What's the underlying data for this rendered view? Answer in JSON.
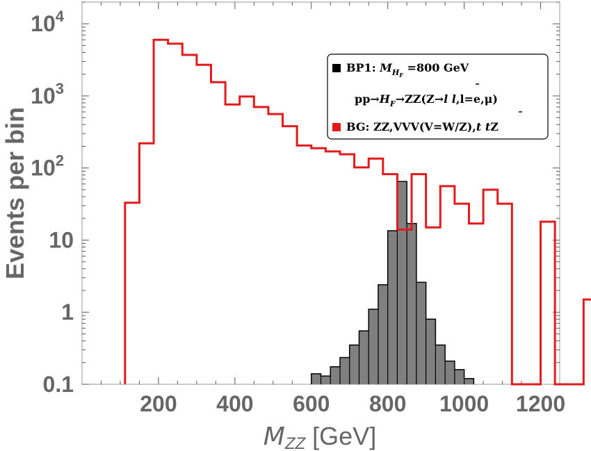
{
  "chart_data": {
    "type": "histogram",
    "scale": "log",
    "xlabel_main": "M",
    "xlabel_sub": "ZZ",
    "xlabel_unit": "[GeV]",
    "ylabel": "Events per bin",
    "xlim": [
      0,
      1250
    ],
    "ylim": [
      0.1,
      20000
    ],
    "x_ticks": [
      {
        "value": 200,
        "label": "200"
      },
      {
        "value": 400,
        "label": "400"
      },
      {
        "value": 600,
        "label": "600"
      },
      {
        "value": 800,
        "label": "800"
      },
      {
        "value": 1000,
        "label": "1000"
      },
      {
        "value": 1200,
        "label": "1200"
      }
    ],
    "y_ticks": [
      {
        "value": 0.1,
        "label": "0.1"
      },
      {
        "value": 1,
        "label": "1"
      },
      {
        "value": 10,
        "label": "10"
      },
      {
        "value": 100,
        "label": "10",
        "exp": "2"
      },
      {
        "value": 1000,
        "label": "10",
        "exp": "3"
      },
      {
        "value": 10000,
        "label": "10",
        "exp": "4"
      }
    ],
    "series": [
      {
        "name": "BG",
        "style": "step",
        "color": "#e31a1c",
        "x_start": 112.5,
        "bin_width": 37.5,
        "values": [
          33,
          220,
          6000,
          5300,
          3700,
          2700,
          1550,
          760,
          980,
          700,
          560,
          380,
          205,
          188,
          170,
          155,
          102,
          135,
          82,
          14,
          82,
          15,
          56,
          32,
          17,
          50,
          32,
          0.1,
          0.1,
          18,
          0.1,
          0.1,
          1.5,
          18
        ]
      },
      {
        "name": "BP1",
        "style": "filled-step",
        "color": "#000000",
        "fill": "#808080",
        "x_start": 600,
        "bin_width": 25,
        "values": [
          0.14,
          0.13,
          0.175,
          0.235,
          0.35,
          0.55,
          1.1,
          2.4,
          13.5,
          65,
          17,
          2.6,
          0.8,
          0.35,
          0.21,
          0.16,
          0.12
        ]
      }
    ],
    "legend": {
      "position": "top-right",
      "entries": [
        {
          "name": "BP1",
          "color": "#000000",
          "text_prefix": "BP1: ",
          "math_main": "M",
          "math_sub": "H",
          "math_subsub": "F",
          "text_suffix": " =800 GeV"
        },
        {
          "text": "pp→H_F→ZZ(Z→ll̄, l=e,μ)",
          "line_pre": "pp→",
          "line_math": "H",
          "line_math_sub": "F",
          "line_mid": "→ZZ(Z→",
          "line_ital": "l l",
          "line_post": ",l=e,μ)"
        },
        {
          "name": "BG",
          "color": "#e31a1c",
          "text": "BG: ZZ,VVV(V=W/Z),",
          "text_ital": "t t",
          "text_end": "Z"
        }
      ]
    }
  }
}
